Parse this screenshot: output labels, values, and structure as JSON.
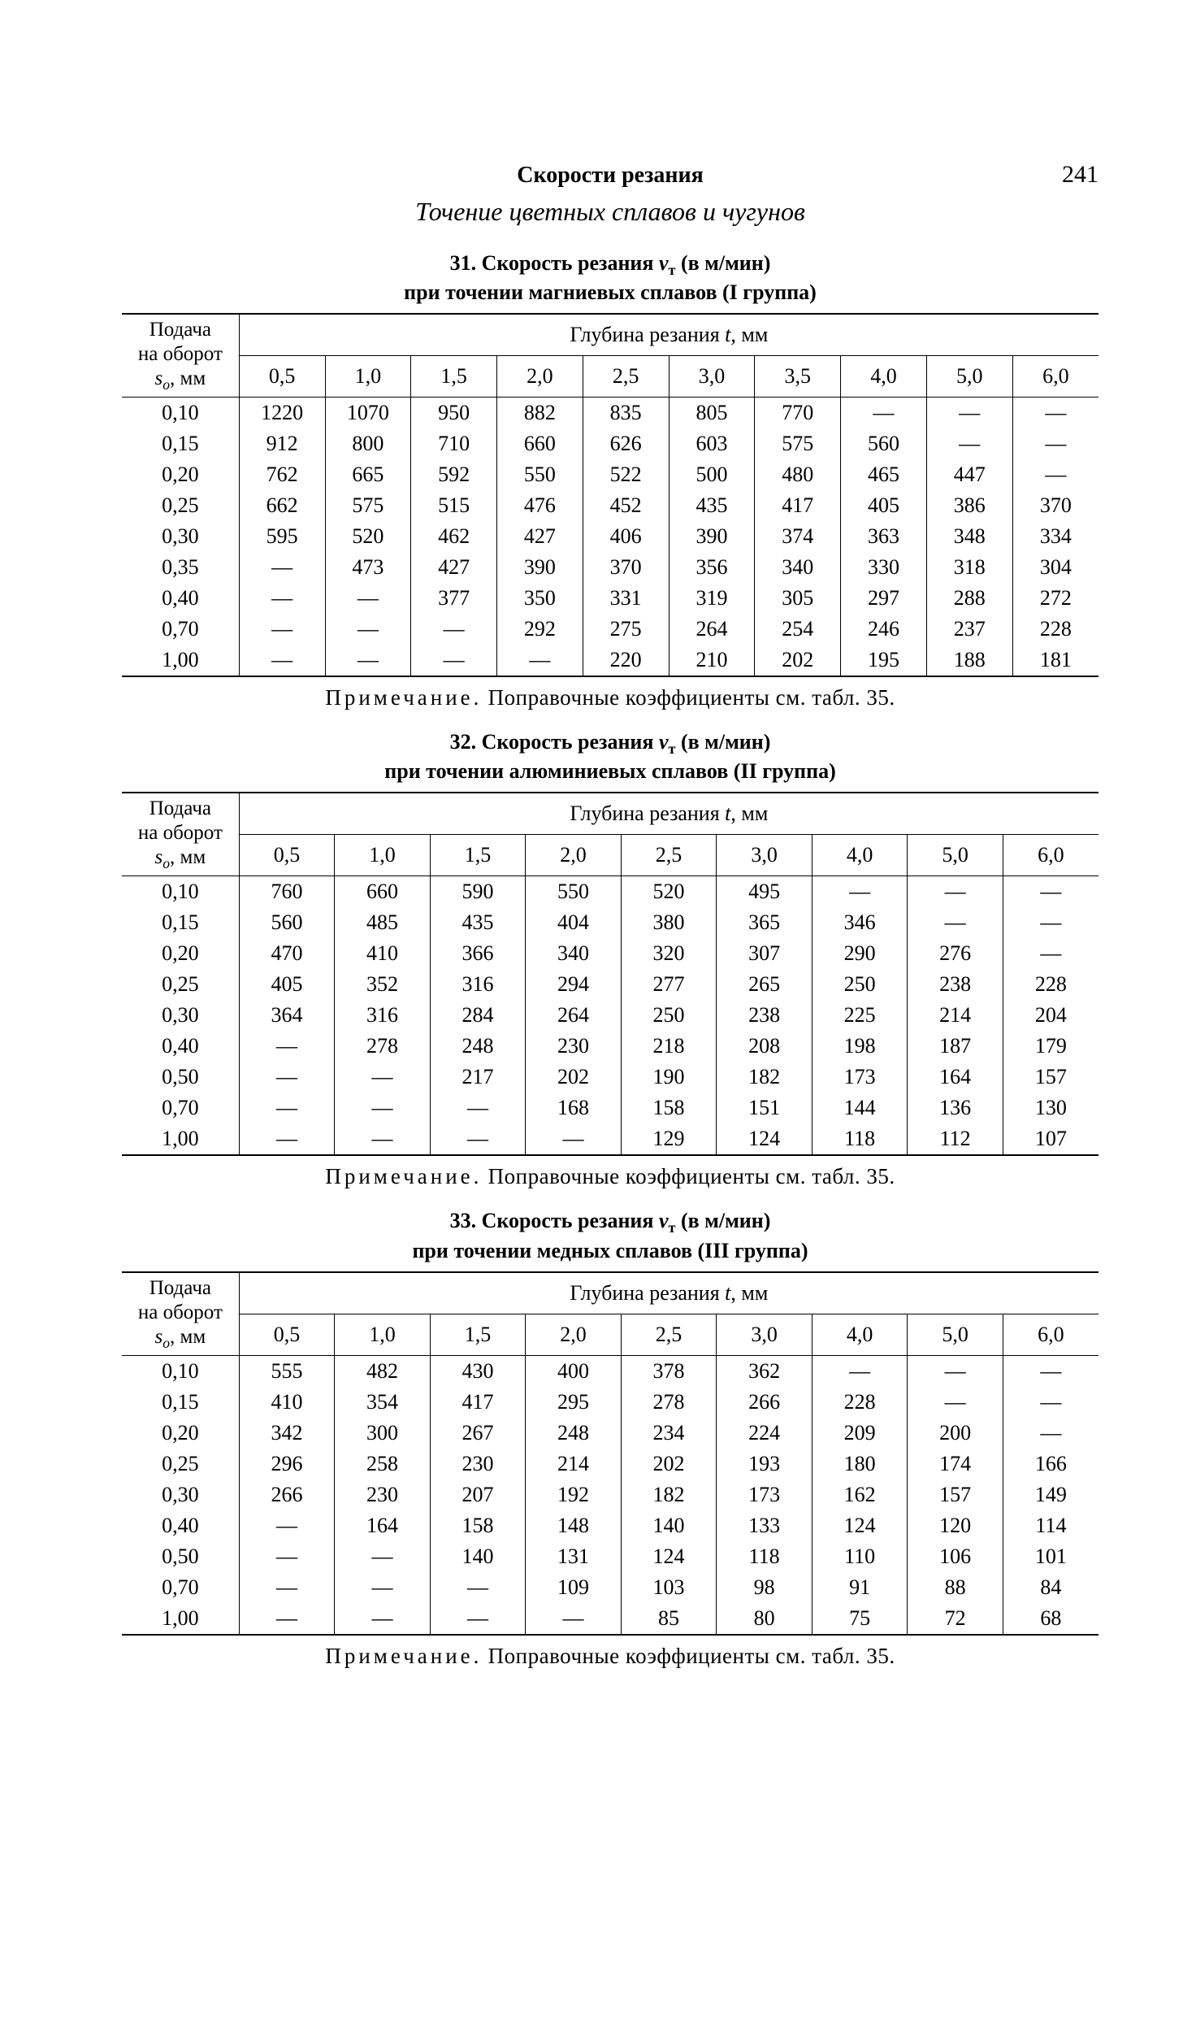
{
  "page_number": "241",
  "running_title": "Скорости резания",
  "section_title": "Точение цветных сплавов и чугунов",
  "depth_header": "Глубина резания t, мм",
  "feed_header_line1": "Подача",
  "feed_header_line2": "на оборот",
  "feed_header_line3_prefix": "s",
  "feed_header_line3_sub": "о",
  "feed_header_line3_suffix": ", мм",
  "note_prefix": "П р и м е ч а н и е.",
  "note_text": " Поправочные коэффициенты см. табл. 35.",
  "tables": [
    {
      "number": "31",
      "title_line1": "31. Скорость резания vт (в м/мин)",
      "title_line2": "при точении магниевых сплавов (I группа)",
      "depth_cols": [
        "0,5",
        "1,0",
        "1,5",
        "2,0",
        "2,5",
        "3,0",
        "3,5",
        "4,0",
        "5,0",
        "6,0"
      ],
      "feed_values": [
        "0,10",
        "0,15",
        "0,20",
        "0,25",
        "0,30",
        "0,35",
        "0,40",
        "0,70",
        "1,00"
      ],
      "rows": [
        [
          "1220",
          "1070",
          "950",
          "882",
          "835",
          "805",
          "770",
          "—",
          "—",
          "—"
        ],
        [
          "912",
          "800",
          "710",
          "660",
          "626",
          "603",
          "575",
          "560",
          "—",
          "—"
        ],
        [
          "762",
          "665",
          "592",
          "550",
          "522",
          "500",
          "480",
          "465",
          "447",
          "—"
        ],
        [
          "662",
          "575",
          "515",
          "476",
          "452",
          "435",
          "417",
          "405",
          "386",
          "370"
        ],
        [
          "595",
          "520",
          "462",
          "427",
          "406",
          "390",
          "374",
          "363",
          "348",
          "334"
        ],
        [
          "—",
          "473",
          "427",
          "390",
          "370",
          "356",
          "340",
          "330",
          "318",
          "304"
        ],
        [
          "—",
          "—",
          "377",
          "350",
          "331",
          "319",
          "305",
          "297",
          "288",
          "272"
        ],
        [
          "—",
          "—",
          "—",
          "292",
          "275",
          "264",
          "254",
          "246",
          "237",
          "228"
        ],
        [
          "—",
          "—",
          "—",
          "—",
          "220",
          "210",
          "202",
          "195",
          "188",
          "181"
        ]
      ]
    },
    {
      "number": "32",
      "title_line1": "32. Скорость резания vт (в м/мин)",
      "title_line2": "при точении алюминиевых сплавов (II группа)",
      "depth_cols": [
        "0,5",
        "1,0",
        "1,5",
        "2,0",
        "2,5",
        "3,0",
        "4,0",
        "5,0",
        "6,0"
      ],
      "feed_values": [
        "0,10",
        "0,15",
        "0,20",
        "0,25",
        "0,30",
        "0,40",
        "0,50",
        "0,70",
        "1,00"
      ],
      "rows": [
        [
          "760",
          "660",
          "590",
          "550",
          "520",
          "495",
          "—",
          "—",
          "—"
        ],
        [
          "560",
          "485",
          "435",
          "404",
          "380",
          "365",
          "346",
          "—",
          "—"
        ],
        [
          "470",
          "410",
          "366",
          "340",
          "320",
          "307",
          "290",
          "276",
          "—"
        ],
        [
          "405",
          "352",
          "316",
          "294",
          "277",
          "265",
          "250",
          "238",
          "228"
        ],
        [
          "364",
          "316",
          "284",
          "264",
          "250",
          "238",
          "225",
          "214",
          "204"
        ],
        [
          "—",
          "278",
          "248",
          "230",
          "218",
          "208",
          "198",
          "187",
          "179"
        ],
        [
          "—",
          "—",
          "217",
          "202",
          "190",
          "182",
          "173",
          "164",
          "157"
        ],
        [
          "—",
          "—",
          "—",
          "168",
          "158",
          "151",
          "144",
          "136",
          "130"
        ],
        [
          "—",
          "—",
          "—",
          "—",
          "129",
          "124",
          "118",
          "112",
          "107"
        ]
      ]
    },
    {
      "number": "33",
      "title_line1": "33. Скорость резания vт (в м/мин)",
      "title_line2": "при точении медных сплавов (III группа)",
      "depth_cols": [
        "0,5",
        "1,0",
        "1,5",
        "2,0",
        "2,5",
        "3,0",
        "4,0",
        "5,0",
        "6,0"
      ],
      "feed_values": [
        "0,10",
        "0,15",
        "0,20",
        "0,25",
        "0,30",
        "0,40",
        "0,50",
        "0,70",
        "1,00"
      ],
      "rows": [
        [
          "555",
          "482",
          "430",
          "400",
          "378",
          "362",
          "—",
          "—",
          "—"
        ],
        [
          "410",
          "354",
          "417",
          "295",
          "278",
          "266",
          "228",
          "—",
          "—"
        ],
        [
          "342",
          "300",
          "267",
          "248",
          "234",
          "224",
          "209",
          "200",
          "—"
        ],
        [
          "296",
          "258",
          "230",
          "214",
          "202",
          "193",
          "180",
          "174",
          "166"
        ],
        [
          "266",
          "230",
          "207",
          "192",
          "182",
          "173",
          "162",
          "157",
          "149"
        ],
        [
          "—",
          "164",
          "158",
          "148",
          "140",
          "133",
          "124",
          "120",
          "114"
        ],
        [
          "—",
          "—",
          "140",
          "131",
          "124",
          "118",
          "110",
          "106",
          "101"
        ],
        [
          "—",
          "—",
          "—",
          "109",
          "103",
          "98",
          "91",
          "88",
          "84"
        ],
        [
          "—",
          "—",
          "—",
          "—",
          "85",
          "80",
          "75",
          "72",
          "68"
        ]
      ]
    }
  ]
}
